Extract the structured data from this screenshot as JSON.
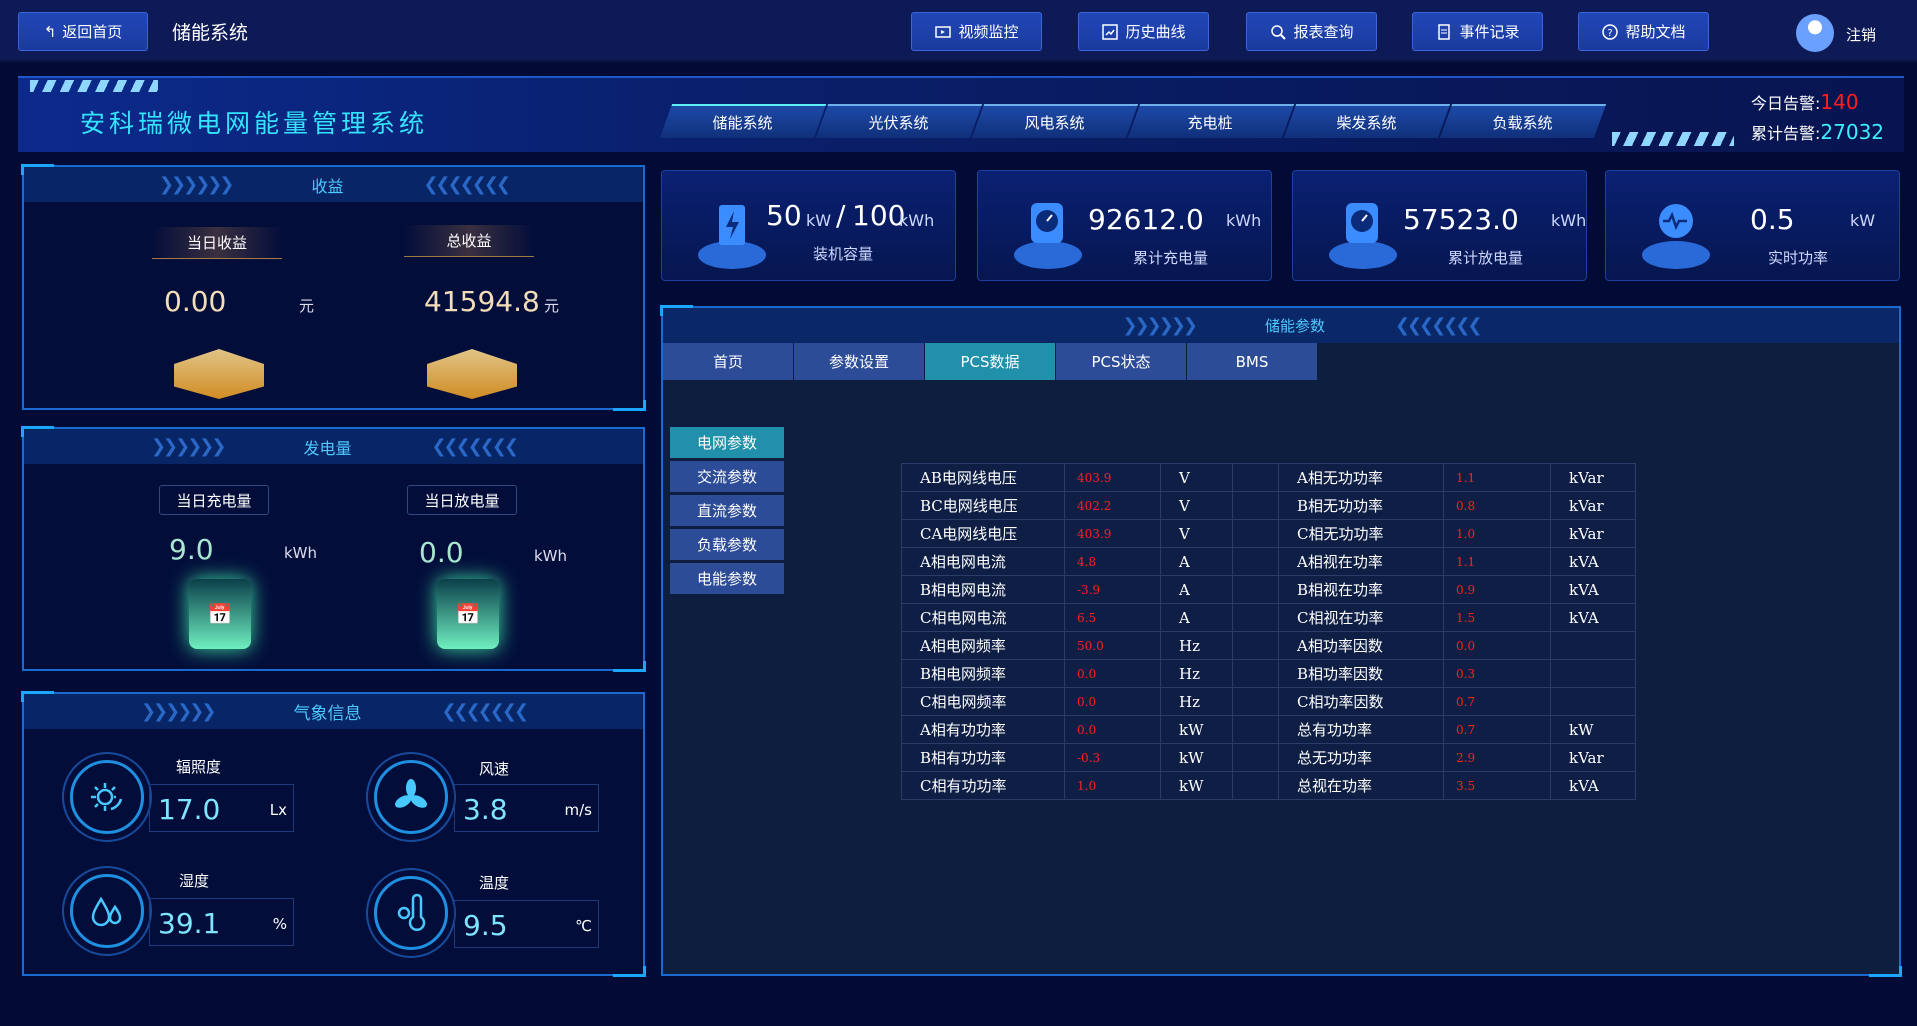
{
  "topbar": {
    "back": "返回首页",
    "system": "储能系统",
    "buttons": [
      {
        "label": "视频监控",
        "icon": "video-icon"
      },
      {
        "label": "历史曲线",
        "icon": "chart-icon"
      },
      {
        "label": "报表查询",
        "icon": "search-icon"
      },
      {
        "label": "事件记录",
        "icon": "document-icon"
      },
      {
        "label": "帮助文档",
        "icon": "help-icon"
      }
    ],
    "logout": "注销"
  },
  "header": {
    "title": "安科瑞微电网能量管理系统",
    "tabs": [
      "储能系统",
      "光伏系统",
      "风电系统",
      "充电桩",
      "柴发系统",
      "负载系统"
    ],
    "active_tab": "储能系统",
    "alarm_today_label": "今日告警:",
    "alarm_today": "140",
    "alarm_total_label": "累计告警:",
    "alarm_total": "27032"
  },
  "revenue": {
    "title": "收益",
    "today_label": "当日收益",
    "today": "0.00",
    "total_label": "总收益",
    "total": "41594.8",
    "unit": "元"
  },
  "energy": {
    "title": "发电量",
    "charge_label": "当日充电量",
    "charge": "9.0",
    "discharge_label": "当日放电量",
    "discharge": "0.0",
    "unit": "kWh"
  },
  "weather": {
    "title": "气象信息",
    "items": [
      {
        "label": "辐照度",
        "value": "17.0",
        "unit": "Lx"
      },
      {
        "label": "风速",
        "value": "3.8",
        "unit": "m/s"
      },
      {
        "label": "湿度",
        "value": "39.1",
        "unit": "%"
      },
      {
        "label": "温度",
        "value": "9.5",
        "unit": "℃"
      }
    ]
  },
  "cards": [
    {
      "value": "50",
      "unit1": "kW",
      "sep": "/",
      "value2": "100",
      "unit2": "kWh",
      "label": "装机容量"
    },
    {
      "value": "92612.0",
      "unit": "kWh",
      "label": "累计充电量"
    },
    {
      "value": "57523.0",
      "unit": "kWh",
      "label": "累计放电量"
    },
    {
      "value": "0.5",
      "unit": "kW",
      "label": "实时功率"
    }
  ],
  "main": {
    "title": "储能参数",
    "tabs": [
      "首页",
      "参数设置",
      "PCS数据",
      "PCS状态",
      "BMS"
    ],
    "active_tab": "PCS数据",
    "subnav": [
      "电网参数",
      "交流参数",
      "直流参数",
      "负载参数",
      "电能参数"
    ],
    "active_sub": "电网参数",
    "rows": [
      [
        "AB电网线电压",
        "403.9",
        "V",
        "A相无功功率",
        "1.1",
        "kVar"
      ],
      [
        "BC电网线电压",
        "402.2",
        "V",
        "B相无功功率",
        "0.8",
        "kVar"
      ],
      [
        "CA电网线电压",
        "403.9",
        "V",
        "C相无功功率",
        "1.0",
        "kVar"
      ],
      [
        "A相电网电流",
        "4.8",
        "A",
        "A相视在功率",
        "1.1",
        "kVA"
      ],
      [
        "B相电网电流",
        "-3.9",
        "A",
        "B相视在功率",
        "0.9",
        "kVA"
      ],
      [
        "C相电网电流",
        "6.5",
        "A",
        "C相视在功率",
        "1.5",
        "kVA"
      ],
      [
        "A相电网频率",
        "50.0",
        "Hz",
        "A相功率因数",
        "0.0",
        ""
      ],
      [
        "B相电网频率",
        "0.0",
        "Hz",
        "B相功率因数",
        "0.3",
        ""
      ],
      [
        "C相电网频率",
        "0.0",
        "Hz",
        "C相功率因数",
        "0.7",
        ""
      ],
      [
        "A相有功功率",
        "0.0",
        "kW",
        "总有功功率",
        "0.7",
        "kW"
      ],
      [
        "B相有功功率",
        "-0.3",
        "kW",
        "总无功功率",
        "2.9",
        "kVar"
      ],
      [
        "C相有功功率",
        "1.0",
        "kW",
        "总视在功率",
        "3.5",
        "kVA"
      ]
    ]
  }
}
